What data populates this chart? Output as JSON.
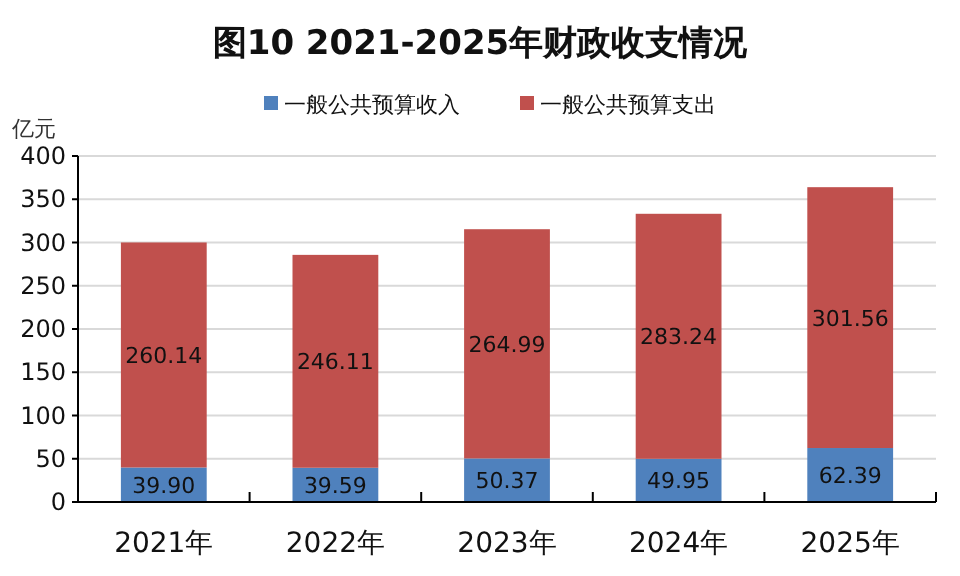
{
  "chart_data": {
    "type": "bar",
    "title": "图10  2021-2025年财政收支情况",
    "ylabel": "亿元",
    "categories": [
      "2021年",
      "2022年",
      "2023年",
      "2024年",
      "2025年"
    ],
    "series": [
      {
        "name": "一般公共预算收入",
        "color": "#4f81bd",
        "values": [
          39.9,
          39.59,
          50.37,
          49.95,
          62.39
        ],
        "value_labels": [
          "39.90",
          "39.59",
          "50.37",
          "49.95",
          "62.39"
        ]
      },
      {
        "name": "一般公共预算支出",
        "color": "#c0504d",
        "values": [
          260.14,
          246.11,
          264.99,
          283.24,
          301.56
        ],
        "value_labels": [
          "260.14",
          "246.11",
          "264.99",
          "283.24",
          "301.56"
        ]
      }
    ],
    "stacked": true,
    "ylim": [
      0,
      400
    ],
    "yticks": [
      0,
      50,
      100,
      150,
      200,
      250,
      300,
      350,
      400
    ],
    "grid": "y",
    "legend": "top"
  }
}
